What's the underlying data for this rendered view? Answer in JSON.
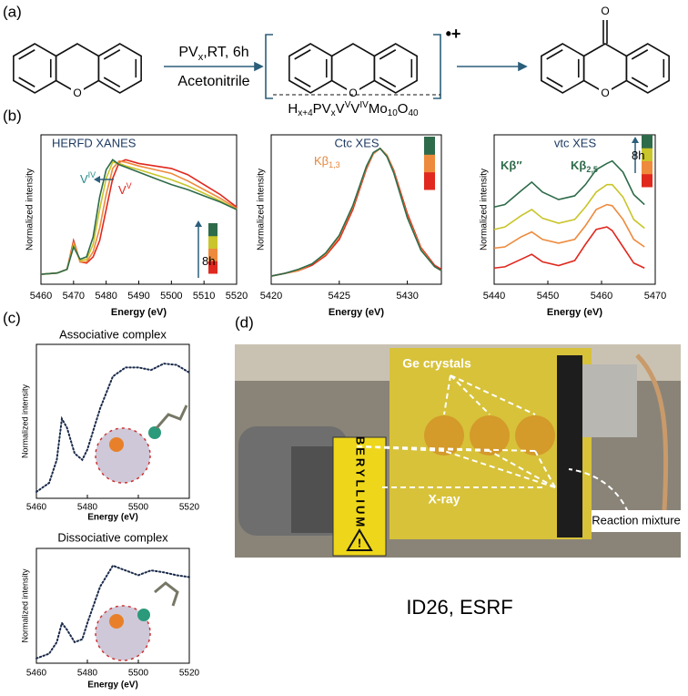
{
  "panel_labels": [
    "(a)",
    "(b)",
    "(c)",
    "(d)"
  ],
  "scheme": {
    "conditions_top": [
      "PV",
      "x",
      ",RT, 6h"
    ],
    "conditions_bottom": "Acetonitrile",
    "radical": "•+",
    "formula": [
      "H",
      "x+4",
      "PV",
      "x",
      "V",
      "V",
      "V",
      "IV",
      "Mo",
      "10",
      "O",
      "40"
    ],
    "atoms": [
      "O",
      "O",
      "O",
      "O"
    ]
  },
  "chart_data": [
    {
      "type": "line",
      "title": "HERFD XANES",
      "title_color": "#1f3b63",
      "x_label": "Energy (eV)",
      "y_label": "Normalized intensity",
      "x": [
        5460,
        5465,
        5468,
        5470,
        5472,
        5474,
        5476,
        5478,
        5480,
        5482,
        5484,
        5486,
        5490,
        5495,
        5500,
        5505,
        5510,
        5515,
        5520
      ],
      "xlim": [
        5460,
        5520
      ],
      "xticks": [
        5460,
        5470,
        5480,
        5490,
        5500,
        5510,
        5520
      ],
      "ylim": [
        0,
        1.2
      ],
      "colorbar": true,
      "series": [
        {
          "color": "#e0281e",
          "values": [
            0.08,
            0.09,
            0.12,
            0.35,
            0.18,
            0.17,
            0.22,
            0.35,
            0.6,
            0.85,
            0.98,
            1.0,
            0.97,
            0.95,
            0.93,
            0.88,
            0.8,
            0.72,
            0.62
          ]
        },
        {
          "color": "#ee8a3c",
          "values": [
            0.08,
            0.09,
            0.12,
            0.33,
            0.18,
            0.18,
            0.26,
            0.45,
            0.72,
            0.93,
            0.99,
            0.98,
            0.95,
            0.92,
            0.89,
            0.83,
            0.76,
            0.69,
            0.61
          ]
        },
        {
          "color": "#c9c52a",
          "values": [
            0.08,
            0.09,
            0.12,
            0.32,
            0.19,
            0.2,
            0.32,
            0.6,
            0.85,
            0.98,
            0.97,
            0.95,
            0.92,
            0.88,
            0.84,
            0.79,
            0.73,
            0.67,
            0.6
          ]
        },
        {
          "color": "#2e6b4a",
          "values": [
            0.08,
            0.09,
            0.12,
            0.3,
            0.2,
            0.22,
            0.38,
            0.7,
            0.92,
            1.0,
            0.96,
            0.94,
            0.9,
            0.85,
            0.8,
            0.76,
            0.71,
            0.66,
            0.6
          ]
        }
      ],
      "annotations": [
        {
          "parts": [
            "V",
            "IV"
          ],
          "script": "sup",
          "color": "#2a8a8a"
        },
        {
          "parts": [
            "V",
            "V"
          ],
          "script": "sup",
          "color": "#e0281e"
        },
        {
          "parts": [
            "8h"
          ],
          "color": "#000000"
        }
      ]
    },
    {
      "type": "line",
      "title": "Ctc XES",
      "title_color": "#1f3b63",
      "x_label": "Energy (eV)",
      "y_label": "Normalized intensity",
      "x": [
        5420,
        5421,
        5422,
        5423,
        5424,
        5425,
        5426,
        5427,
        5427.5,
        5428,
        5428.5,
        5429,
        5430,
        5431,
        5432,
        5432.5
      ],
      "xlim": [
        5420,
        5432.5
      ],
      "xticks": [
        5420,
        5425,
        5430
      ],
      "ylim": [
        0,
        1.1
      ],
      "colorbar": true,
      "series": [
        {
          "color": "#e0281e",
          "values": [
            0.06,
            0.08,
            0.1,
            0.14,
            0.21,
            0.33,
            0.55,
            0.85,
            0.96,
            1.0,
            0.95,
            0.84,
            0.52,
            0.27,
            0.14,
            0.11
          ]
        },
        {
          "color": "#ee8a3c",
          "values": [
            0.06,
            0.08,
            0.1,
            0.15,
            0.22,
            0.35,
            0.57,
            0.86,
            0.96,
            1.0,
            0.95,
            0.83,
            0.5,
            0.26,
            0.13,
            0.1
          ]
        },
        {
          "color": "#2e6b4a",
          "values": [
            0.06,
            0.08,
            0.11,
            0.15,
            0.23,
            0.36,
            0.58,
            0.87,
            0.97,
            1.0,
            0.94,
            0.82,
            0.49,
            0.25,
            0.13,
            0.1
          ]
        }
      ],
      "annotations": [
        {
          "parts": [
            "Kβ",
            "1,3"
          ],
          "script": "sub",
          "color": "#e8863a"
        }
      ]
    },
    {
      "type": "line",
      "title": "vtc XES",
      "title_color": "#1f3b63",
      "x_label": "Energy (eV)",
      "y_label": "Normalized intensity",
      "x": [
        5440,
        5442,
        5445,
        5447,
        5449,
        5452,
        5455,
        5457,
        5459,
        5461,
        5462,
        5464,
        5466,
        5468
      ],
      "xlim": [
        5440,
        5470
      ],
      "xticks": [
        5440,
        5450,
        5460,
        5470
      ],
      "ylim": [
        0,
        1.2
      ],
      "colorbar": true,
      "series": [
        {
          "color": "#e0281e",
          "values": [
            0.13,
            0.14,
            0.2,
            0.24,
            0.18,
            0.15,
            0.19,
            0.32,
            0.44,
            0.46,
            0.43,
            0.3,
            0.17,
            0.13
          ]
        },
        {
          "color": "#ee8a3c",
          "values": [
            0.29,
            0.3,
            0.38,
            0.42,
            0.36,
            0.33,
            0.36,
            0.47,
            0.6,
            0.64,
            0.63,
            0.52,
            0.36,
            0.3
          ]
        },
        {
          "color": "#c9c52a",
          "values": [
            0.44,
            0.46,
            0.55,
            0.6,
            0.53,
            0.49,
            0.52,
            0.62,
            0.74,
            0.8,
            0.8,
            0.7,
            0.52,
            0.45
          ]
        },
        {
          "color": "#2e6b4a",
          "values": [
            0.62,
            0.64,
            0.75,
            0.82,
            0.74,
            0.68,
            0.71,
            0.8,
            0.92,
            0.97,
            0.99,
            0.9,
            0.72,
            0.64
          ]
        }
      ],
      "annotations": [
        {
          "parts": [
            "Kβ″"
          ],
          "color": "#2e6b4a"
        },
        {
          "parts": [
            "Kβ",
            "2,5"
          ],
          "script": "sub",
          "color": "#2e6b4a"
        },
        {
          "parts": [
            "8h"
          ],
          "color": "#000000"
        }
      ]
    },
    {
      "type": "line",
      "title": "Associative complex",
      "x_label": "Energy (eV)",
      "y_label": "Normalized intensity",
      "dashed": true,
      "x": [
        5460,
        5465,
        5468,
        5470,
        5472,
        5475,
        5478,
        5480,
        5485,
        5490,
        5495,
        5500,
        5505,
        5510,
        5515,
        5520
      ],
      "xlim": [
        5460,
        5520
      ],
      "xticks": [
        5460,
        5480,
        5500,
        5520
      ],
      "ylim": [
        0,
        1.2
      ],
      "series": [
        {
          "color": "#1a2a4a",
          "values": [
            0.05,
            0.12,
            0.3,
            0.62,
            0.55,
            0.35,
            0.3,
            0.38,
            0.7,
            0.95,
            1.02,
            1.02,
            1.0,
            1.05,
            1.04,
            0.98
          ]
        }
      ]
    },
    {
      "type": "line",
      "title": "Dissociative complex",
      "x_label": "Energy (eV)",
      "y_label": "Normalized intensity",
      "dashed": true,
      "x": [
        5460,
        5465,
        5468,
        5470,
        5472,
        5475,
        5478,
        5480,
        5485,
        5490,
        5495,
        5500,
        5505,
        5510,
        5515,
        5520
      ],
      "xlim": [
        5460,
        5520
      ],
      "xticks": [
        5460,
        5480,
        5500,
        5520
      ],
      "ylim": [
        0,
        1.2
      ],
      "series": [
        {
          "color": "#1a2a4a",
          "values": [
            0.05,
            0.1,
            0.22,
            0.42,
            0.35,
            0.22,
            0.25,
            0.42,
            0.8,
            1.02,
            0.97,
            0.92,
            0.97,
            0.95,
            0.92,
            0.9
          ]
        }
      ]
    }
  ],
  "photo": {
    "labels": [
      "Ge crystals",
      "X-ray",
      "Reaction mixture"
    ],
    "window_text": "BERYLLIUM",
    "warning": "!",
    "caption": "ID26, ESRF"
  }
}
